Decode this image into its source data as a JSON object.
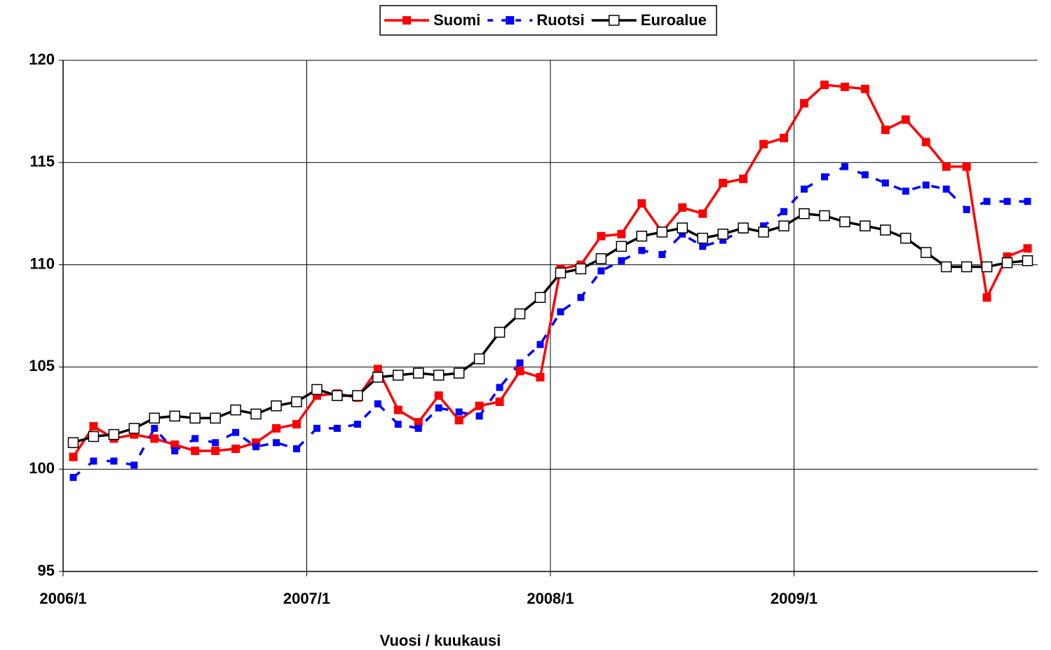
{
  "chart_data": {
    "type": "line",
    "categories": [
      "2006/1",
      null,
      null,
      null,
      null,
      null,
      null,
      null,
      null,
      null,
      null,
      null,
      "2007/1",
      null,
      null,
      null,
      null,
      null,
      null,
      null,
      null,
      null,
      null,
      null,
      "2008/1",
      null,
      null,
      null,
      null,
      null,
      null,
      null,
      null,
      null,
      null,
      null,
      "2009/1",
      null,
      null,
      null,
      null,
      null,
      null,
      null,
      null,
      null,
      null,
      null
    ],
    "xlabel": "Vuosi / kuukausi",
    "ylim": [
      95,
      120
    ],
    "yticks": [
      95,
      100,
      105,
      110,
      115,
      120
    ],
    "grid": true,
    "legend": "top",
    "series": [
      {
        "name": "Suomi",
        "color": "#ff0000",
        "dashed": false,
        "marker": "filled",
        "values": [
          100.6,
          102.1,
          101.5,
          101.7,
          101.5,
          101.2,
          100.9,
          100.9,
          101.0,
          101.3,
          102.0,
          102.2,
          103.6,
          103.7,
          103.5,
          104.9,
          102.9,
          102.3,
          103.6,
          102.4,
          103.1,
          103.3,
          104.8,
          104.5,
          109.8,
          110.0,
          111.4,
          111.5,
          113.0,
          111.6,
          112.8,
          112.5,
          114.0,
          114.2,
          115.9,
          116.2,
          117.9,
          118.8,
          118.7,
          118.6,
          116.6,
          117.1,
          116.0,
          114.8,
          114.8,
          108.4,
          110.4,
          110.8
        ]
      },
      {
        "name": "Ruotsi",
        "color": "#0000ff",
        "dashed": true,
        "marker": "filled",
        "values": [
          99.6,
          100.4,
          100.4,
          100.2,
          102.0,
          100.9,
          101.5,
          101.3,
          101.8,
          101.1,
          101.3,
          101.0,
          102.0,
          102.0,
          102.2,
          103.2,
          102.2,
          102.0,
          103.0,
          102.8,
          102.6,
          104.0,
          105.2,
          106.1,
          107.7,
          108.4,
          109.7,
          110.2,
          110.7,
          110.5,
          111.5,
          110.9,
          111.2,
          111.7,
          111.9,
          112.6,
          113.7,
          114.3,
          114.8,
          114.4,
          114.0,
          113.6,
          113.9,
          113.7,
          112.7,
          113.1,
          113.1,
          113.1
        ]
      },
      {
        "name": "Euroalue",
        "color": "#000000",
        "dashed": false,
        "marker": "hollow",
        "values": [
          101.3,
          101.6,
          101.7,
          102.0,
          102.5,
          102.6,
          102.5,
          102.5,
          102.9,
          102.7,
          103.1,
          103.3,
          103.9,
          103.6,
          103.6,
          104.5,
          104.6,
          104.7,
          104.6,
          104.7,
          105.4,
          106.7,
          107.6,
          108.4,
          109.6,
          109.8,
          110.3,
          110.9,
          111.4,
          111.6,
          111.8,
          111.3,
          111.5,
          111.8,
          111.6,
          111.9,
          112.5,
          112.4,
          112.1,
          111.9,
          111.7,
          111.3,
          110.6,
          109.9,
          109.9,
          109.9,
          110.1,
          110.2
        ]
      }
    ]
  }
}
